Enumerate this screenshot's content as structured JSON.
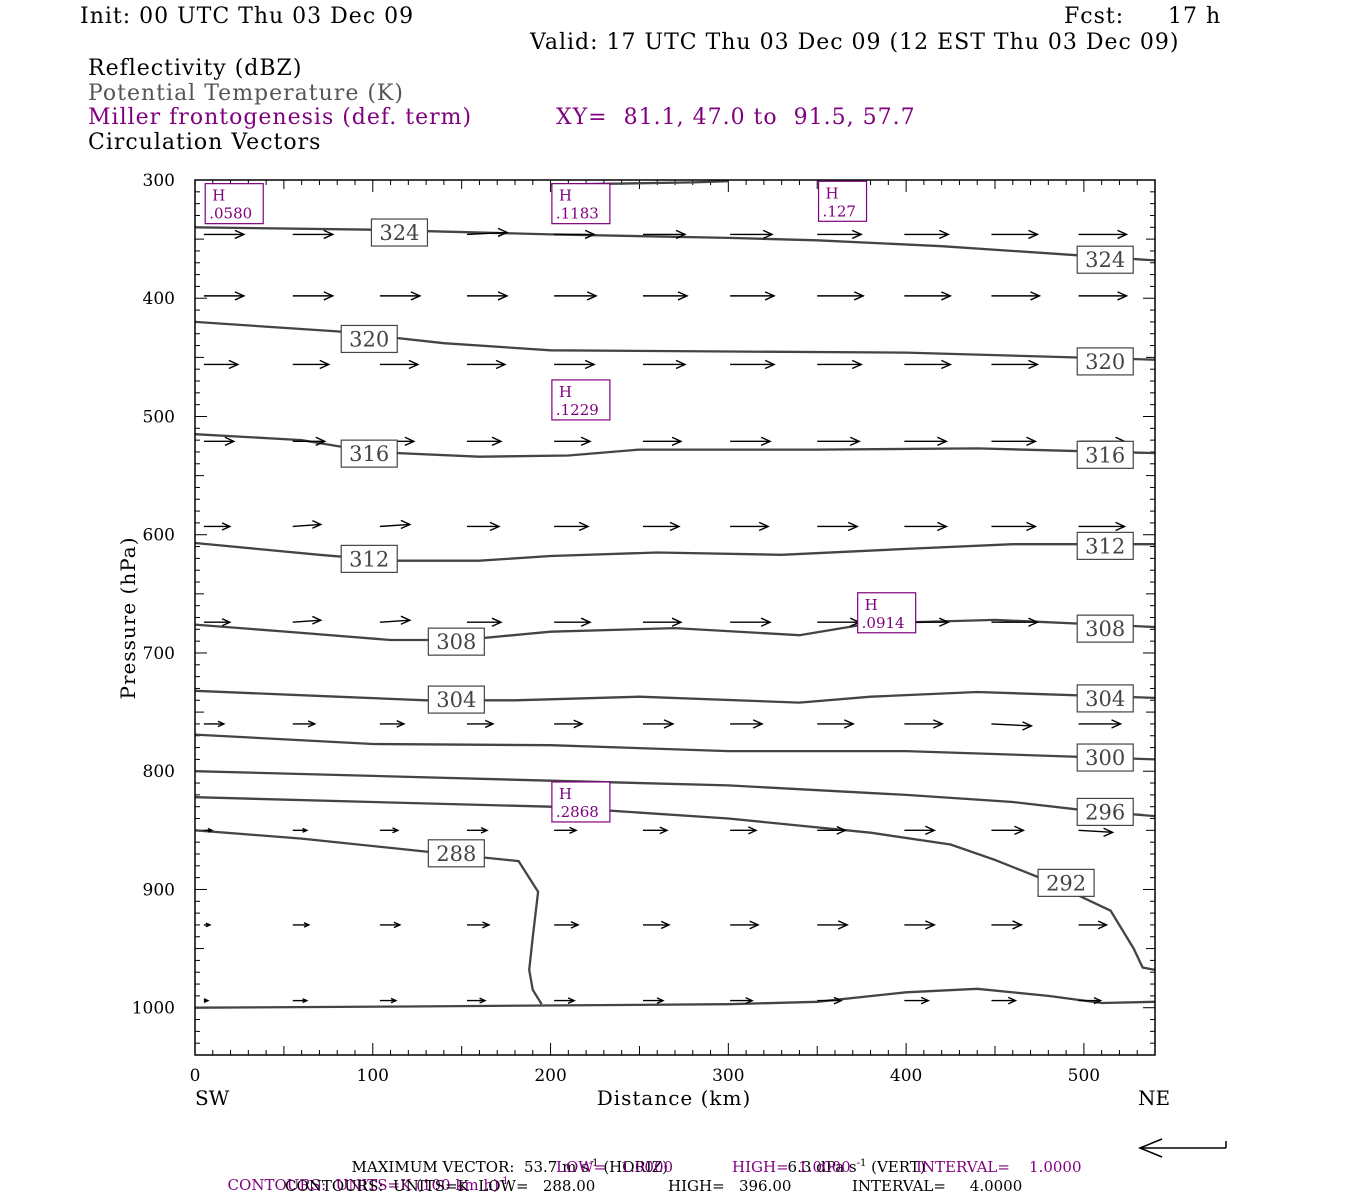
{
  "header": {
    "init": "Init: 00 UTC Thu 03 Dec 09",
    "fcst_label": "Fcst:",
    "fcst_value": "17 h",
    "valid": "Valid: 17 UTC Thu 03 Dec 09 (12 EST Thu 03 Dec 09)"
  },
  "fields": {
    "reflectivity": "Reflectivity (dBZ)",
    "theta": "Potential Temperature (K)",
    "miller": "Miller frontogenesis (def. term)",
    "xy": "XY=  81.1, 47.0 to  91.5, 57.7",
    "circulation": "Circulation Vectors"
  },
  "colors": {
    "theta": "#444444",
    "frontogenesis": "#800080",
    "text": "#000000",
    "gray_text": "#555555"
  },
  "chart_data": {
    "type": "line",
    "title": "",
    "xlabel": "Distance (km)",
    "ylabel": "Pressure (hPa)",
    "xlim": [
      0,
      540
    ],
    "ylim": [
      300,
      1040
    ],
    "y_inverted": true,
    "x_ticks": [
      "0",
      "100",
      "200",
      "300",
      "400",
      "500"
    ],
    "y_ticks": [
      "300",
      "400",
      "500",
      "600",
      "700",
      "800",
      "900",
      "1000"
    ],
    "x_end_labels": {
      "left": "SW",
      "right": "NE"
    },
    "contours": [
      {
        "level": "324",
        "points": [
          [
            0,
            340
          ],
          [
            100,
            342
          ],
          [
            200,
            346
          ],
          [
            300,
            349
          ],
          [
            350,
            351
          ],
          [
            420,
            356
          ],
          [
            480,
            362
          ],
          [
            540,
            368
          ]
        ]
      },
      {
        "level": "320",
        "points": [
          [
            0,
            420
          ],
          [
            80,
            428
          ],
          [
            140,
            438
          ],
          [
            200,
            444
          ],
          [
            300,
            445
          ],
          [
            400,
            446
          ],
          [
            540,
            452
          ]
        ]
      },
      {
        "level": "316",
        "points": [
          [
            0,
            515
          ],
          [
            60,
            520
          ],
          [
            100,
            530
          ],
          [
            160,
            534
          ],
          [
            210,
            533
          ],
          [
            250,
            528
          ],
          [
            350,
            528
          ],
          [
            440,
            527
          ],
          [
            540,
            531
          ]
        ]
      },
      {
        "level": "312",
        "points": [
          [
            0,
            607
          ],
          [
            70,
            617
          ],
          [
            110,
            622
          ],
          [
            160,
            622
          ],
          [
            200,
            618
          ],
          [
            260,
            615
          ],
          [
            330,
            617
          ],
          [
            400,
            612
          ],
          [
            460,
            608
          ],
          [
            540,
            608
          ]
        ]
      },
      {
        "level": "308",
        "points": [
          [
            0,
            676
          ],
          [
            60,
            683
          ],
          [
            110,
            689
          ],
          [
            150,
            689
          ],
          [
            200,
            682
          ],
          [
            270,
            679
          ],
          [
            340,
            685
          ],
          [
            380,
            675
          ],
          [
            450,
            672
          ],
          [
            540,
            678
          ]
        ]
      },
      {
        "level": "304",
        "points": [
          [
            0,
            732
          ],
          [
            80,
            737
          ],
          [
            130,
            740
          ],
          [
            180,
            740
          ],
          [
            250,
            737
          ],
          [
            340,
            742
          ],
          [
            380,
            737
          ],
          [
            440,
            733
          ],
          [
            540,
            738
          ]
        ]
      },
      {
        "level": "300",
        "points": [
          [
            0,
            769
          ],
          [
            100,
            777
          ],
          [
            200,
            778
          ],
          [
            300,
            783
          ],
          [
            400,
            783
          ],
          [
            500,
            788
          ],
          [
            540,
            790
          ]
        ]
      },
      {
        "level": "296",
        "points": [
          [
            0,
            800
          ],
          [
            100,
            804
          ],
          [
            200,
            808
          ],
          [
            300,
            812
          ],
          [
            400,
            820
          ],
          [
            460,
            826
          ],
          [
            500,
            833
          ],
          [
            540,
            838
          ]
        ]
      },
      {
        "level": "292",
        "points": [
          [
            0,
            822
          ],
          [
            100,
            826
          ],
          [
            200,
            830
          ],
          [
            300,
            840
          ],
          [
            380,
            852
          ],
          [
            425,
            862
          ],
          [
            450,
            875
          ],
          [
            480,
            893
          ],
          [
            515,
            918
          ],
          [
            528,
            950
          ],
          [
            533,
            966
          ],
          [
            540,
            968
          ]
        ]
      },
      {
        "level": "288",
        "points": [
          [
            0,
            850
          ],
          [
            60,
            857
          ],
          [
            130,
            868
          ],
          [
            182,
            876
          ],
          [
            193,
            902
          ],
          [
            190,
            940
          ],
          [
            188,
            968
          ],
          [
            190,
            985
          ],
          [
            195,
            997
          ]
        ]
      },
      {
        "level": "",
        "points": [
          [
            0,
            1000
          ],
          [
            120,
            999
          ],
          [
            300,
            997
          ],
          [
            350,
            995
          ],
          [
            400,
            987
          ],
          [
            440,
            984
          ],
          [
            480,
            990
          ],
          [
            510,
            996
          ],
          [
            540,
            995
          ]
        ]
      },
      {
        "level": "",
        "points": [
          [
            200,
            304
          ],
          [
            280,
            302
          ],
          [
            300,
            301
          ]
        ]
      }
    ],
    "contour_labels": [
      {
        "text": "324",
        "x": 115,
        "p": 344
      },
      {
        "text": "324",
        "x": 512,
        "p": 367
      },
      {
        "text": "320",
        "x": 98,
        "p": 434
      },
      {
        "text": "320",
        "x": 512,
        "p": 453
      },
      {
        "text": "316",
        "x": 98,
        "p": 531
      },
      {
        "text": "316",
        "x": 512,
        "p": 532
      },
      {
        "text": "312",
        "x": 98,
        "p": 620
      },
      {
        "text": "312",
        "x": 512,
        "p": 609
      },
      {
        "text": "308",
        "x": 147,
        "p": 690
      },
      {
        "text": "308",
        "x": 512,
        "p": 679
      },
      {
        "text": "304",
        "x": 147,
        "p": 739
      },
      {
        "text": "304",
        "x": 512,
        "p": 738
      },
      {
        "text": "300",
        "x": 512,
        "p": 788
      },
      {
        "text": "296",
        "x": 512,
        "p": 834
      },
      {
        "text": "292",
        "x": 490,
        "p": 894
      },
      {
        "text": "288",
        "x": 147,
        "p": 869
      }
    ],
    "maxima": [
      {
        "label": "H",
        "value": ".0580",
        "x": 8,
        "p": 320
      },
      {
        "label": "H",
        "value": ".1183",
        "x": 203,
        "p": 320
      },
      {
        "label": "H",
        "value": ".127",
        "x": 353,
        "p": 318
      },
      {
        "label": "H",
        "value": ".1229",
        "x": 203,
        "p": 486
      },
      {
        "label": "H",
        "value": ".0914",
        "x": 375,
        "p": 666
      },
      {
        "label": "H",
        "value": ".2868",
        "x": 203,
        "p": 826
      }
    ],
    "vector_columns_km": [
      5,
      55,
      104,
      153,
      202,
      252,
      301,
      350,
      399,
      448,
      497
    ],
    "vectors": [
      {
        "p": 346,
        "lengths": [
          40,
          40,
          40,
          40,
          40,
          42,
          42,
          44,
          44,
          46,
          48
        ],
        "slopes": [
          0,
          0,
          0,
          -1,
          0,
          0,
          0,
          0,
          0,
          0,
          0
        ]
      },
      {
        "p": 398,
        "lengths": [
          40,
          40,
          40,
          40,
          42,
          44,
          44,
          46,
          46,
          48,
          48
        ],
        "slopes": [
          0,
          0,
          0,
          0,
          0,
          0,
          0,
          0,
          0,
          0,
          0
        ]
      },
      {
        "p": 456,
        "lengths": [
          34,
          36,
          38,
          38,
          40,
          42,
          44,
          44,
          46,
          46,
          48
        ],
        "slopes": [
          0,
          0,
          0,
          0,
          0,
          0,
          0,
          0,
          0,
          0,
          0
        ]
      },
      {
        "p": 521,
        "lengths": [
          30,
          32,
          34,
          34,
          36,
          38,
          40,
          42,
          42,
          44,
          46
        ],
        "slopes": [
          0,
          0,
          0,
          0,
          0,
          0,
          0,
          0,
          0,
          0,
          0
        ]
      },
      {
        "p": 593,
        "lengths": [
          26,
          28,
          30,
          32,
          34,
          36,
          38,
          40,
          42,
          44,
          46
        ],
        "slopes": [
          0,
          -1,
          -1,
          0,
          0,
          0,
          0,
          0,
          0,
          0,
          0
        ]
      },
      {
        "p": 674,
        "lengths": [
          26,
          28,
          30,
          34,
          36,
          38,
          40,
          42,
          44,
          46,
          46
        ],
        "slopes": [
          0,
          -1,
          -1,
          0,
          0,
          0,
          0,
          0,
          0,
          0,
          0
        ]
      },
      {
        "p": 760,
        "lengths": [
          20,
          22,
          24,
          26,
          28,
          30,
          32,
          36,
          38,
          40,
          42
        ],
        "slopes": [
          0,
          0,
          0,
          0,
          0,
          0,
          0,
          0,
          0,
          1,
          0
        ]
      },
      {
        "p": 850,
        "lengths": [
          8,
          14,
          18,
          20,
          22,
          24,
          26,
          28,
          30,
          32,
          34
        ],
        "slopes": [
          0,
          0,
          0,
          0,
          0,
          0,
          0,
          0,
          0,
          0,
          1
        ]
      },
      {
        "p": 930,
        "lengths": [
          6,
          16,
          20,
          22,
          24,
          26,
          28,
          30,
          30,
          30,
          28
        ],
        "slopes": [
          0,
          0,
          0,
          0,
          0,
          0,
          0,
          0,
          0,
          0,
          0
        ]
      },
      {
        "p": 994,
        "lengths": [
          4,
          14,
          16,
          18,
          20,
          20,
          22,
          24,
          24,
          24,
          22
        ],
        "slopes": [
          0,
          0,
          0,
          0,
          0,
          0,
          0,
          0,
          0,
          0,
          0
        ]
      }
    ]
  },
  "footer": {
    "max_vector_label": "MAXIMUM VECTOR:",
    "horiz": "53.7 m s",
    "horiz_sup": "-1",
    "horiz_suffix": " (HORIZ)",
    "vert": "6.3 dPa s",
    "vert_sup": "-1",
    "vert_suffix": " (VERT)",
    "contours1_pre": "CONTOURS:  UNITS=K (100 km h)",
    "contours1_sup": "-1",
    "contours1_low": "LOW=   1.0000",
    "contours1_high": "HIGH=  1.0000",
    "contours1_int": "INTERVAL=    1.0000",
    "contours2_units": "CONTOURS:  UNITS=K  LOW=   288.00",
    "contours2_high": "HIGH=   396.00",
    "contours2_int": "INTERVAL=     4.0000"
  }
}
